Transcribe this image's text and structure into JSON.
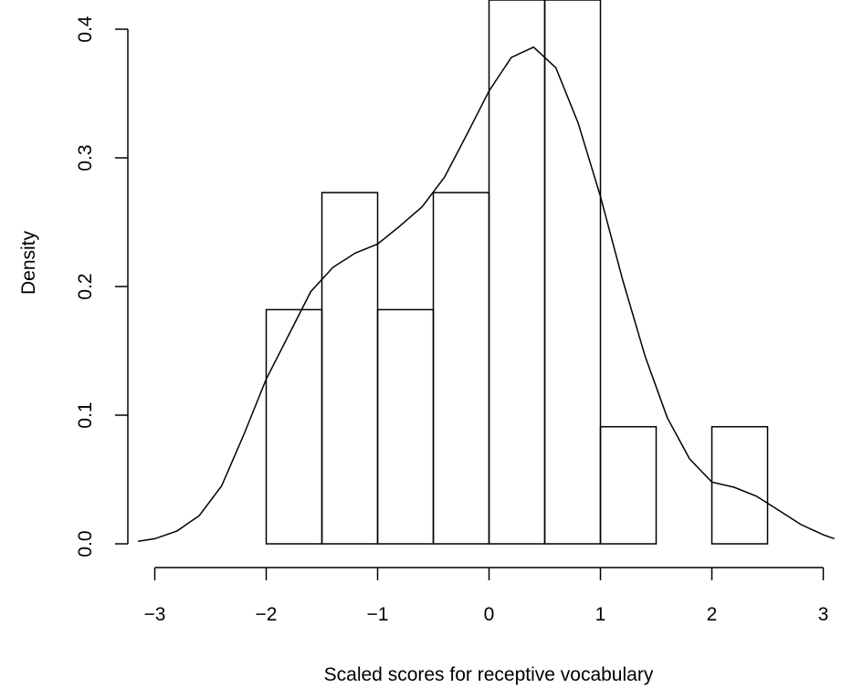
{
  "chart_data": {
    "type": "bar",
    "title": "",
    "xlabel": "Scaled scores for receptive vocabulary",
    "ylabel": "Density",
    "xlim": [
      -3.15,
      3.1
    ],
    "ylim": [
      0,
      0.4
    ],
    "x_ticks": [
      -3,
      -2,
      -1,
      0,
      1,
      2,
      3
    ],
    "x_tick_labels": [
      "−3",
      "−2",
      "−1",
      "0",
      "1",
      "2",
      "3"
    ],
    "y_ticks": [
      0.0,
      0.1,
      0.2,
      0.3,
      0.4
    ],
    "y_tick_labels": [
      "0.0",
      "0.1",
      "0.2",
      "0.3",
      "0.4"
    ],
    "grid": false,
    "bins": [
      {
        "x0": -2.0,
        "x1": -1.5,
        "density": 0.182
      },
      {
        "x0": -1.5,
        "x1": -1.0,
        "density": 0.273
      },
      {
        "x0": -1.0,
        "x1": -0.5,
        "density": 0.182
      },
      {
        "x0": -0.5,
        "x1": 0.0,
        "density": 0.273
      },
      {
        "x0": 0.0,
        "x1": 0.5,
        "density": 0.455
      },
      {
        "x0": 0.5,
        "x1": 1.0,
        "density": 0.455
      },
      {
        "x0": 1.0,
        "x1": 1.5,
        "density": 0.091
      },
      {
        "x0": 1.5,
        "x1": 2.0,
        "density": 0.0
      },
      {
        "x0": 2.0,
        "x1": 2.5,
        "density": 0.091
      }
    ],
    "density_curve": {
      "x": [
        -3.15,
        -3.0,
        -2.8,
        -2.6,
        -2.4,
        -2.2,
        -2.0,
        -1.8,
        -1.6,
        -1.4,
        -1.2,
        -1.0,
        -0.8,
        -0.6,
        -0.4,
        -0.2,
        0.0,
        0.2,
        0.4,
        0.6,
        0.8,
        1.0,
        1.2,
        1.4,
        1.6,
        1.8,
        2.0,
        2.2,
        2.4,
        2.6,
        2.8,
        3.0,
        3.1
      ],
      "y": [
        0.002,
        0.004,
        0.01,
        0.022,
        0.045,
        0.085,
        0.128,
        0.162,
        0.196,
        0.215,
        0.226,
        0.233,
        0.247,
        0.262,
        0.285,
        0.318,
        0.352,
        0.378,
        0.386,
        0.37,
        0.327,
        0.27,
        0.205,
        0.146,
        0.098,
        0.066,
        0.048,
        0.044,
        0.037,
        0.026,
        0.015,
        0.007,
        0.004
      ]
    }
  }
}
